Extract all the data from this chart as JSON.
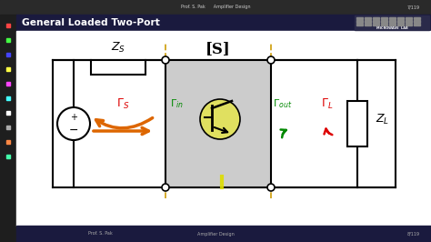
{
  "title": "General Loaded Two-Port",
  "bg_dark": "#1a1a2e",
  "bg_slide": "#ffffff",
  "title_color": "#ffffff",
  "title_fontsize": 7.7,
  "toolbar_color": "#2a2a2a",
  "footer_left": "Prof. S. Pak",
  "footer_center": "Amplifier Design",
  "footer_right": "8/119",
  "header_right": "7/119",
  "header_center": "Prof. S. Pak      Amplifier Design",
  "s_box_color": "#cccccc",
  "trans_circle_color": "#e0e060",
  "zs_label": "$Z_S$",
  "zl_label": "$Z_L$",
  "s_label": "[S]",
  "gamma_s_label": "$\\Gamma_S$",
  "gamma_in_label": "$\\Gamma_{in}$",
  "gamma_out_label": "$\\Gamma_{out}$",
  "gamma_l_label": "$\\Gamma_L$",
  "color_red": "#dd0000",
  "color_green": "#008800",
  "color_orange": "#dd6600",
  "color_dashed": "#cc9900",
  "color_circuit": "#000000"
}
